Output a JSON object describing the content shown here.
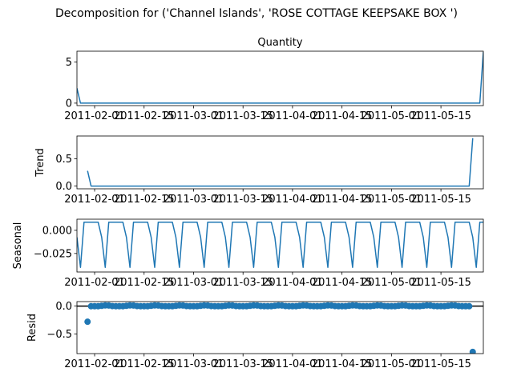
{
  "figure": {
    "suptitle": "Decomposition for ('Channel Islands', 'ROSE COTTAGE KEEPSAKE BOX ')",
    "line_color": "#1f77b4",
    "zero_line_color": "#000000"
  },
  "chart_data": [
    {
      "type": "line",
      "title": "Quantity",
      "ylabel": "",
      "ylim": [
        -0.3,
        6.3
      ],
      "yticks": [
        0,
        5
      ],
      "ytick_labels": [
        "0",
        "5"
      ],
      "xlim": [
        0,
        115
      ],
      "xticks": [
        5,
        19,
        33,
        47,
        61,
        75,
        89,
        103
      ],
      "xtick_labels": [
        "2011-02-01",
        "2011-02-15",
        "2011-03-01",
        "2011-03-15",
        "2011-04-01",
        "2011-04-15",
        "2011-05-01",
        "2011-05-15"
      ],
      "series": [
        {
          "name": "Quantity",
          "points": [
            [
              0,
              1.8
            ],
            [
              1,
              0
            ],
            [
              114,
              0
            ],
            [
              115,
              6.2
            ]
          ]
        }
      ]
    },
    {
      "type": "line",
      "title": "",
      "ylabel": "Trend",
      "ylim": [
        -0.05,
        0.92
      ],
      "yticks": [
        0,
        0.5
      ],
      "ytick_labels": [
        "0.0",
        "0.5"
      ],
      "xlim": [
        0,
        115
      ],
      "xticks": [
        5,
        19,
        33,
        47,
        61,
        75,
        89,
        103
      ],
      "xtick_labels": [
        "2011-02-01",
        "2011-02-15",
        "2011-03-01",
        "2011-03-15",
        "2011-04-01",
        "2011-04-15",
        "2011-05-01",
        "2011-05-15"
      ],
      "series": [
        {
          "name": "Trend",
          "points": [
            [
              3,
              0.28
            ],
            [
              4,
              0
            ],
            [
              111,
              0
            ],
            [
              112,
              0.88
            ]
          ]
        }
      ]
    },
    {
      "type": "line",
      "title": "",
      "ylabel": "Seasonal",
      "ylim": [
        -0.045,
        0.012
      ],
      "yticks": [
        0,
        -0.025
      ],
      "ytick_labels": [
        "0.000",
        "−0.025"
      ],
      "xlim": [
        0,
        115
      ],
      "xticks": [
        5,
        19,
        33,
        47,
        61,
        75,
        89,
        103
      ],
      "xtick_labels": [
        "2011-02-01",
        "2011-02-15",
        "2011-03-01",
        "2011-03-15",
        "2011-04-01",
        "2011-04-15",
        "2011-05-01",
        "2011-05-15"
      ],
      "series": [
        {
          "name": "Seasonal",
          "period": 7,
          "phase": 2,
          "pattern": [
            0.0088,
            0.0088,
            0.0088,
            0.0088,
            0.0088,
            -0.0075,
            -0.04
          ]
        }
      ]
    },
    {
      "type": "scatter",
      "title": "",
      "ylabel": "Resid",
      "ylim": [
        -0.85,
        0.08
      ],
      "yticks": [
        0,
        -0.5
      ],
      "ytick_labels": [
        "0.0",
        "−0.5"
      ],
      "xlim": [
        0,
        115
      ],
      "xticks": [
        5,
        19,
        33,
        47,
        61,
        75,
        89,
        103
      ],
      "xtick_labels": [
        "2011-02-01",
        "2011-02-15",
        "2011-03-01",
        "2011-03-15",
        "2011-04-01",
        "2011-04-15",
        "2011-05-01",
        "2011-05-15"
      ],
      "baseline": 0,
      "series": [
        {
          "name": "Resid",
          "x_start": 3,
          "x_end": 112,
          "period": 7,
          "phase": 2,
          "pattern": [
            0.01,
            0.0,
            -0.003,
            -0.003,
            -0.003,
            0.005,
            0.012
          ],
          "overrides": [
            [
              3,
              -0.28
            ],
            [
              112,
              -0.82
            ]
          ]
        }
      ]
    }
  ]
}
